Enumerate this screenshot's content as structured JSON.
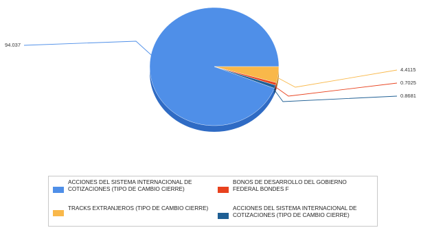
{
  "chart_data": {
    "type": "pie",
    "title": "",
    "slices": [
      {
        "label": "ACCIONES DEL SISTEMA INTERNACIONAL DE COTIZACIONES (TIPO DE CAMBIO CIERRE)",
        "value": 94.037,
        "value_label": "94.037",
        "color": "#4f8fe8",
        "side_color": "#2f6bc4"
      },
      {
        "label": "TRACKS EXTRANJEROS (TIPO DE CAMBIO CIERRE)",
        "value": 4.4115,
        "value_label": "4.4115",
        "color": "#f9b84a",
        "side_color": "#c88a25"
      },
      {
        "label": "BONOS DE DESARROLLO DEL GOBIERNO FEDERAL BONDES F",
        "value": 0.7025,
        "value_label": "0.7025",
        "color": "#e8421e",
        "side_color": "#b02c10"
      },
      {
        "label": "ACCIONES DEL SISTEMA INTERNACIONAL DE COTIZACIONES (TIPO DE CAMBIO CIERRE)",
        "value": 0.8681,
        "value_label": "0.8681",
        "color": "#1f5f94",
        "side_color": "#133d62"
      }
    ],
    "legend_position": "bottom"
  },
  "legend": {
    "items": [
      {
        "label": "ACCIONES DEL SISTEMA INTERNACIONAL DE COTIZACIONES (TIPO DE CAMBIO CIERRE)",
        "color": "#4f8fe8"
      },
      {
        "label": "BONOS DE DESARROLLO DEL GOBIERNO FEDERAL BONDES F",
        "color": "#e8421e"
      },
      {
        "label": "TRACKS EXTRANJEROS (TIPO DE CAMBIO CIERRE)",
        "color": "#f9b84a"
      },
      {
        "label": "ACCIONES DEL SISTEMA INTERNACIONAL DE COTIZACIONES (TIPO DE CAMBIO CIERRE)",
        "color": "#1f5f94"
      }
    ]
  }
}
